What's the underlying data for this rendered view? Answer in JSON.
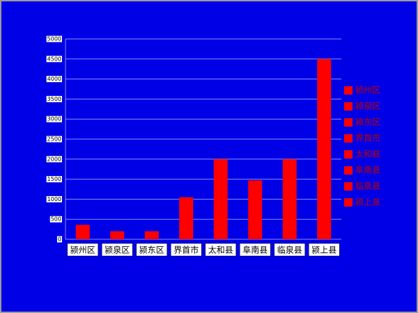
{
  "chart_data": {
    "type": "bar",
    "categories": [
      "颍州区",
      "颍泉区",
      "颍东区",
      "界首市",
      "太和县",
      "阜南县",
      "临泉县",
      "颍上县"
    ],
    "values": [
      360,
      200,
      200,
      1050,
      2000,
      1470,
      2000,
      4500
    ],
    "color": "#ff0000",
    "ylim": [
      0,
      5000
    ],
    "yticks": [
      0,
      500,
      1000,
      1500,
      2000,
      2500,
      3000,
      3500,
      4000,
      4500,
      5000
    ],
    "grid": true,
    "legend": "right"
  }
}
